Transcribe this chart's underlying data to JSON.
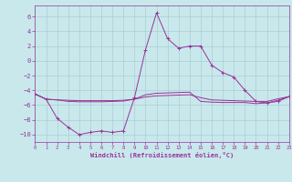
{
  "background_color": "#c8e8ec",
  "grid_color": "#aacdd4",
  "line_color": "#993399",
  "xlabel": "Windchill (Refroidissement éolien,°C)",
  "xlim": [
    0,
    23
  ],
  "ylim": [
    -11,
    7.5
  ],
  "yticks": [
    -10,
    -8,
    -6,
    -4,
    -2,
    0,
    2,
    4,
    6
  ],
  "xticks": [
    0,
    1,
    2,
    3,
    4,
    5,
    6,
    7,
    8,
    9,
    10,
    11,
    12,
    13,
    14,
    15,
    16,
    17,
    18,
    19,
    20,
    21,
    22,
    23
  ],
  "line1_x": [
    0,
    1,
    2,
    3,
    4,
    5,
    6,
    7,
    8,
    9,
    10,
    11,
    12,
    13,
    14,
    15,
    16,
    17,
    18,
    19,
    20,
    21,
    22,
    23
  ],
  "line1_y": [
    -4.5,
    -5.2,
    -5.3,
    -5.35,
    -5.4,
    -5.4,
    -5.4,
    -5.4,
    -5.35,
    -5.2,
    -4.9,
    -4.75,
    -4.7,
    -4.65,
    -4.6,
    -5.0,
    -5.3,
    -5.35,
    -5.4,
    -5.45,
    -5.5,
    -5.5,
    -5.15,
    -4.85
  ],
  "line2_x": [
    0,
    1,
    2,
    3,
    4,
    5,
    6,
    7,
    8,
    9,
    10,
    11,
    12,
    13,
    14,
    15,
    16,
    17,
    18,
    19,
    20,
    21,
    22,
    23
  ],
  "line2_y": [
    -4.5,
    -5.2,
    -5.3,
    -5.5,
    -5.55,
    -5.55,
    -5.55,
    -5.5,
    -5.45,
    -5.2,
    -4.6,
    -4.4,
    -4.35,
    -4.3,
    -4.25,
    -5.5,
    -5.6,
    -5.65,
    -5.65,
    -5.65,
    -5.8,
    -5.7,
    -5.35,
    -4.85
  ],
  "line3_x": [
    0,
    1,
    2,
    3,
    4,
    5,
    6,
    7,
    8,
    9,
    10,
    11,
    12,
    13,
    14,
    15,
    16,
    17,
    18,
    19,
    20,
    21,
    22,
    23
  ],
  "line3_y": [
    -4.5,
    -5.2,
    -7.8,
    -9.0,
    -10.0,
    -9.7,
    -9.5,
    -9.7,
    -9.5,
    -5.0,
    1.5,
    6.5,
    3.0,
    1.7,
    2.0,
    2.0,
    -0.6,
    -1.6,
    -2.2,
    -4.0,
    -5.5,
    -5.7,
    -5.5,
    -4.85
  ]
}
